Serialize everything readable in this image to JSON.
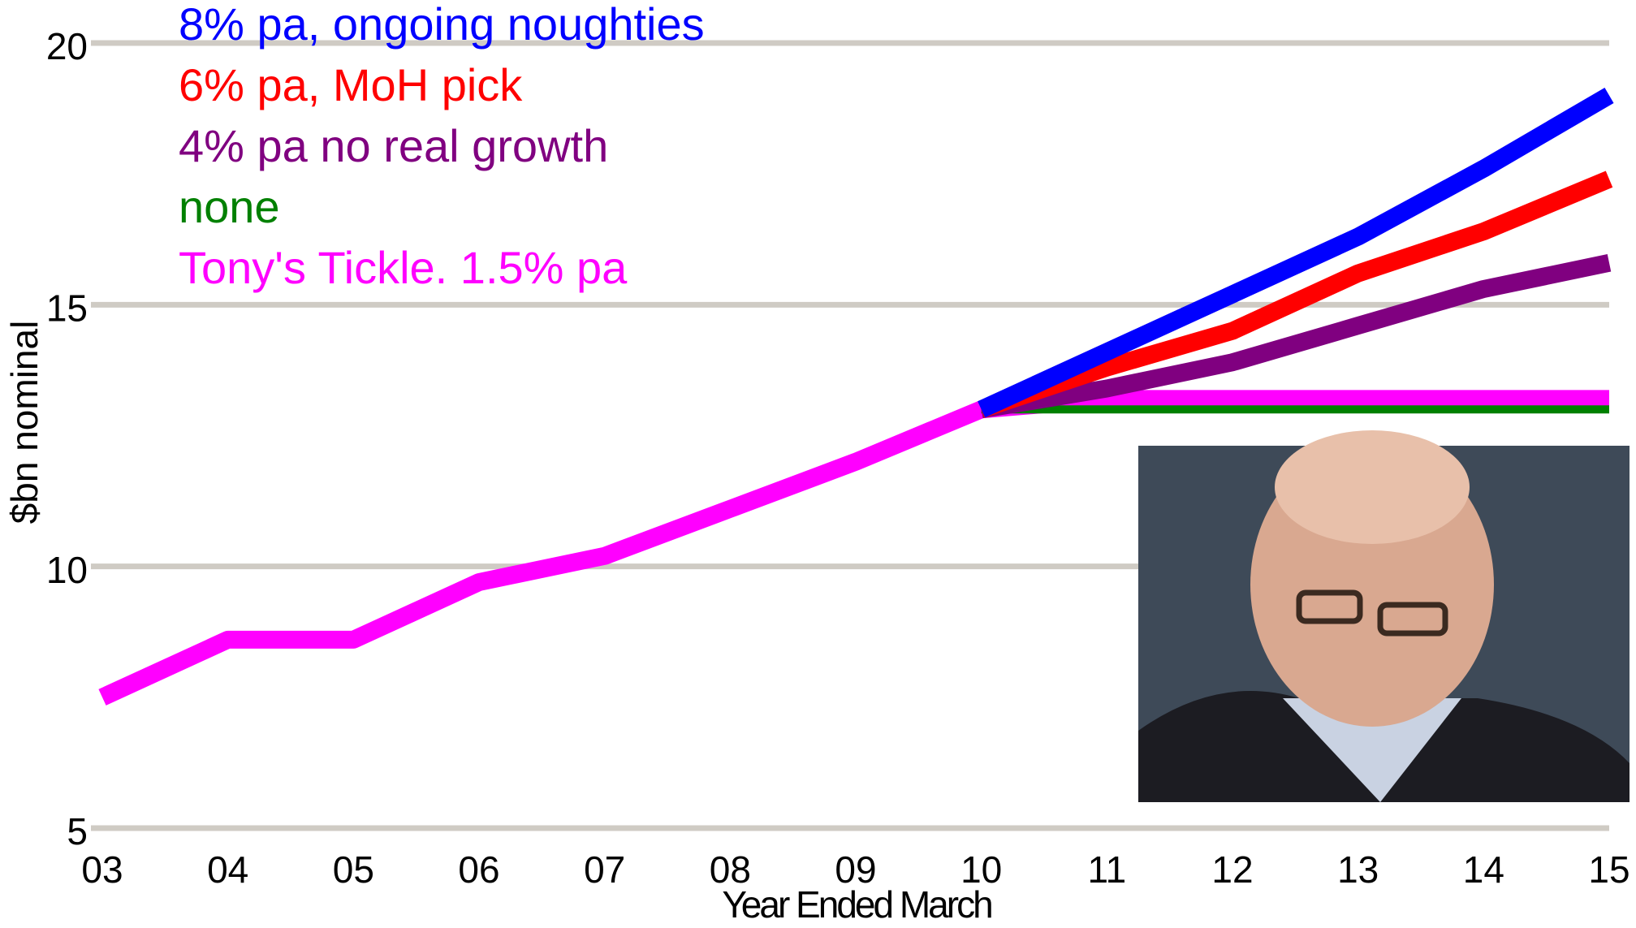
{
  "chart_data": {
    "type": "line",
    "y_label": "$bn nominal",
    "x_label": "Year Ended March",
    "categories": [
      "03",
      "04",
      "05",
      "06",
      "07",
      "08",
      "09",
      "10",
      "11",
      "12",
      "13",
      "14",
      "15"
    ],
    "ylim": [
      5,
      20
    ],
    "yticks": [
      5,
      10,
      15,
      20
    ],
    "grid": true,
    "legend": "top-left",
    "series": [
      {
        "name": "8% pa, ongoing noughties",
        "color": "#0000ff",
        "values": [
          null,
          null,
          null,
          null,
          null,
          null,
          null,
          13.0,
          14.1,
          15.2,
          16.3,
          17.6,
          19.0
        ]
      },
      {
        "name": "6% pa, MoH pick",
        "color": "#ff0000",
        "values": [
          null,
          null,
          null,
          null,
          null,
          null,
          null,
          13.0,
          13.8,
          14.5,
          15.6,
          16.4,
          17.4
        ]
      },
      {
        "name": "4% pa no real growth",
        "color": "#800080",
        "values": [
          null,
          null,
          null,
          null,
          null,
          null,
          null,
          13.0,
          13.4,
          13.9,
          14.6,
          15.3,
          15.8
        ]
      },
      {
        "name": "none",
        "color": "#008000",
        "values": [
          null,
          null,
          null,
          null,
          null,
          null,
          null,
          13.0,
          13.0,
          13.0,
          13.0,
          13.0,
          13.0
        ]
      },
      {
        "name": "Tony's Tickle. 1.5% pa",
        "color": "#ff00ff",
        "values": [
          7.5,
          8.6,
          8.6,
          9.7,
          10.2,
          11.1,
          12.0,
          13.0,
          13.2,
          13.2,
          13.2,
          13.2,
          13.2
        ]
      }
    ]
  }
}
